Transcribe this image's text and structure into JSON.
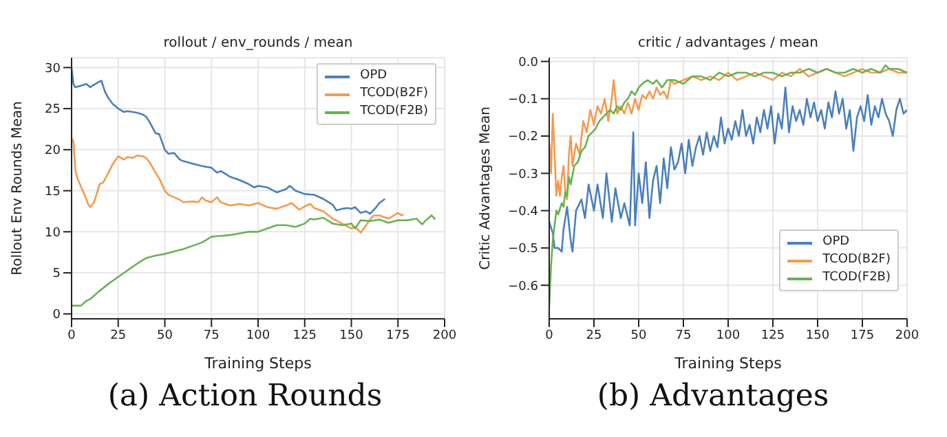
{
  "chart_data": [
    {
      "type": "line",
      "title": "rollout / env_rounds / mean",
      "xlabel": "Training Steps",
      "ylabel": "Rollout Env Rounds Mean",
      "annotations": [
        "(a) Action Rounds"
      ],
      "xlim": [
        0,
        200
      ],
      "xticks": [
        0,
        25,
        50,
        75,
        100,
        125,
        150,
        175,
        200
      ],
      "ylim": [
        -0.6,
        31.2
      ],
      "yticks": [
        0,
        5,
        10,
        15,
        20,
        25,
        30
      ],
      "grid": true,
      "legend": "top right",
      "series": [
        {
          "name": "OPD",
          "color": "#4a7fbc",
          "x": [
            0,
            1,
            2,
            5,
            8,
            10,
            12,
            15,
            16,
            18,
            20,
            22,
            25,
            28,
            30,
            35,
            38,
            40,
            42,
            45,
            47,
            50,
            52,
            55,
            58,
            60,
            65,
            70,
            75,
            78,
            80,
            85,
            90,
            95,
            98,
            100,
            105,
            110,
            115,
            117,
            120,
            125,
            130,
            135,
            140,
            142,
            145,
            148,
            150,
            152,
            155,
            158,
            160,
            163,
            165,
            168
          ],
          "values": [
            30,
            28,
            27.6,
            27.8,
            28,
            27.6,
            27.9,
            28.3,
            28.4,
            27,
            26.2,
            25.6,
            25,
            24.6,
            24.7,
            24.5,
            24.3,
            24,
            23.3,
            22,
            21.9,
            20,
            19.5,
            19.6,
            18.8,
            18.6,
            18.3,
            18,
            17.8,
            17.2,
            17.4,
            16.7,
            16.3,
            15.8,
            15.4,
            15.6,
            15.4,
            14.8,
            15.2,
            15.6,
            15,
            14.6,
            14.5,
            14,
            13.3,
            12.6,
            12.8,
            12.9,
            12.8,
            13,
            12.3,
            12.5,
            12.2,
            12.9,
            13.5,
            14
          ]
        },
        {
          "name": "TCOD(B2F)",
          "color": "#f39a4e",
          "x": [
            0,
            1,
            2,
            3,
            5,
            7,
            9,
            10,
            12,
            14,
            15,
            17,
            20,
            22,
            25,
            28,
            30,
            33,
            35,
            38,
            40,
            42,
            45,
            47,
            50,
            52,
            55,
            58,
            60,
            65,
            68,
            70,
            72,
            75,
            78,
            80,
            85,
            90,
            95,
            100,
            105,
            110,
            115,
            118,
            120,
            122,
            125,
            128,
            130,
            135,
            140,
            145,
            150,
            152,
            155,
            157,
            160,
            162,
            165,
            170,
            175,
            177,
            178
          ],
          "values": [
            21.4,
            21,
            17.5,
            16.6,
            15.5,
            14.5,
            13.3,
            13,
            13.6,
            15,
            15.8,
            16,
            17.3,
            18.2,
            19.2,
            18.8,
            19.1,
            19,
            19.3,
            19.2,
            19,
            18.4,
            17.2,
            16.5,
            15,
            14.5,
            14.2,
            13.9,
            13.6,
            13.7,
            13.6,
            14.2,
            13.8,
            13.6,
            14.2,
            13.6,
            13.2,
            13.4,
            13.2,
            13.5,
            13,
            12.8,
            13.2,
            13.5,
            13.1,
            12.7,
            13.1,
            13.4,
            12.9,
            12.5,
            11.6,
            11,
            10.4,
            10.6,
            9.9,
            10.5,
            11.5,
            12,
            12,
            11.6,
            12.3,
            12,
            12.1
          ]
        },
        {
          "name": "TCOD(F2B)",
          "color": "#6bb052",
          "x": [
            0,
            5,
            8,
            10,
            15,
            20,
            25,
            30,
            35,
            40,
            45,
            50,
            55,
            60,
            65,
            70,
            75,
            80,
            85,
            90,
            95,
            100,
            105,
            110,
            115,
            120,
            125,
            128,
            130,
            135,
            140,
            145,
            150,
            152,
            155,
            160,
            165,
            170,
            175,
            180,
            185,
            188,
            190,
            193,
            195
          ],
          "values": [
            1,
            1,
            1.6,
            1.8,
            2.8,
            3.7,
            4.5,
            5.3,
            6.1,
            6.8,
            7.1,
            7.3,
            7.6,
            7.9,
            8.3,
            8.7,
            9.4,
            9.5,
            9.6,
            9.8,
            10,
            10,
            10.4,
            10.8,
            10.8,
            10.6,
            11,
            11.6,
            11.5,
            11.7,
            11,
            10.8,
            11,
            10.4,
            11.4,
            11.3,
            11.5,
            11.1,
            11.4,
            11.4,
            11.6,
            10.9,
            11.4,
            12,
            11.5
          ]
        }
      ]
    },
    {
      "type": "line",
      "title": "critic / advantages / mean",
      "xlabel": "Training Steps",
      "ylabel": "Critic Advantages Mean",
      "annotations": [
        "(b) Advantages"
      ],
      "xlim": [
        0,
        200
      ],
      "xticks": [
        0,
        25,
        50,
        75,
        100,
        125,
        150,
        175,
        200
      ],
      "ylim": [
        -0.69,
        0.01
      ],
      "yticks": [
        {
          "value": -0.6,
          "label": "−0.6"
        },
        {
          "value": -0.5,
          "label": "−0.5"
        },
        {
          "value": -0.4,
          "label": "−0.4"
        },
        {
          "value": -0.3,
          "label": "−0.3"
        },
        {
          "value": -0.2,
          "label": "−0.2"
        },
        {
          "value": -0.1,
          "label": "−0.1"
        },
        {
          "value": 0,
          "label": "0.0"
        }
      ],
      "grid": true,
      "legend": "bottom right",
      "series": [
        {
          "name": "OPD",
          "color": "#4a7fbc",
          "x": [
            0,
            2,
            3,
            5,
            7,
            8,
            10,
            12,
            13,
            15,
            18,
            20,
            22,
            25,
            27,
            30,
            32,
            35,
            37,
            40,
            42,
            45,
            47,
            48,
            50,
            52,
            54,
            56,
            58,
            60,
            62,
            64,
            66,
            68,
            70,
            72,
            74,
            76,
            78,
            80,
            82,
            84,
            86,
            88,
            90,
            92,
            94,
            96,
            98,
            100,
            102,
            104,
            106,
            108,
            110,
            112,
            114,
            116,
            118,
            120,
            122,
            124,
            126,
            128,
            130,
            132,
            134,
            136,
            138,
            140,
            142,
            144,
            146,
            148,
            150,
            152,
            154,
            156,
            158,
            160,
            162,
            164,
            166,
            168,
            170,
            172,
            174,
            176,
            178,
            180,
            182,
            184,
            186,
            188,
            190,
            192,
            194,
            196,
            198,
            200
          ],
          "values": [
            -0.43,
            -0.46,
            -0.5,
            -0.5,
            -0.51,
            -0.45,
            -0.39,
            -0.48,
            -0.51,
            -0.4,
            -0.37,
            -0.42,
            -0.33,
            -0.4,
            -0.33,
            -0.42,
            -0.3,
            -0.43,
            -0.34,
            -0.42,
            -0.38,
            -0.44,
            -0.19,
            -0.44,
            -0.3,
            -0.38,
            -0.27,
            -0.42,
            -0.32,
            -0.28,
            -0.38,
            -0.26,
            -0.34,
            -0.23,
            -0.29,
            -0.27,
            -0.22,
            -0.3,
            -0.21,
            -0.28,
            -0.23,
            -0.2,
            -0.25,
            -0.19,
            -0.24,
            -0.2,
            -0.23,
            -0.15,
            -0.22,
            -0.18,
            -0.21,
            -0.16,
            -0.2,
            -0.13,
            -0.2,
            -0.17,
            -0.22,
            -0.15,
            -0.19,
            -0.13,
            -0.18,
            -0.12,
            -0.22,
            -0.14,
            -0.18,
            -0.07,
            -0.19,
            -0.12,
            -0.16,
            -0.13,
            -0.17,
            -0.1,
            -0.15,
            -0.11,
            -0.16,
            -0.13,
            -0.18,
            -0.11,
            -0.15,
            -0.08,
            -0.14,
            -0.1,
            -0.18,
            -0.13,
            -0.24,
            -0.15,
            -0.12,
            -0.16,
            -0.09,
            -0.17,
            -0.12,
            -0.15,
            -0.1,
            -0.14,
            -0.16,
            -0.2,
            -0.13,
            -0.1,
            -0.14,
            -0.13
          ]
        },
        {
          "name": "TCOD(B2F)",
          "color": "#f39a4e",
          "x": [
            0,
            1,
            2,
            3,
            4,
            5,
            6,
            7,
            8,
            9,
            10,
            11,
            12,
            13,
            15,
            17,
            19,
            21,
            23,
            25,
            27,
            29,
            31,
            33,
            35,
            36,
            38,
            40,
            42,
            44,
            46,
            48,
            50,
            52,
            54,
            56,
            58,
            60,
            62,
            64,
            66,
            68,
            70,
            75,
            80,
            85,
            90,
            95,
            100,
            105,
            110,
            115,
            120,
            125,
            130,
            135,
            140,
            145,
            150,
            155,
            160,
            165,
            170,
            175,
            180,
            185,
            190,
            195,
            200
          ],
          "values": [
            -0.22,
            -0.3,
            -0.14,
            -0.25,
            -0.36,
            -0.32,
            -0.36,
            -0.31,
            -0.28,
            -0.35,
            -0.37,
            -0.25,
            -0.2,
            -0.28,
            -0.22,
            -0.25,
            -0.16,
            -0.19,
            -0.13,
            -0.17,
            -0.12,
            -0.14,
            -0.1,
            -0.16,
            -0.1,
            -0.05,
            -0.14,
            -0.12,
            -0.14,
            -0.11,
            -0.14,
            -0.1,
            -0.13,
            -0.09,
            -0.1,
            -0.08,
            -0.1,
            -0.07,
            -0.09,
            -0.08,
            -0.1,
            -0.05,
            -0.06,
            -0.05,
            -0.04,
            -0.05,
            -0.04,
            -0.05,
            -0.03,
            -0.05,
            -0.04,
            -0.03,
            -0.04,
            -0.05,
            -0.03,
            -0.04,
            -0.02,
            -0.04,
            -0.03,
            -0.02,
            -0.03,
            -0.04,
            -0.03,
            -0.02,
            -0.03,
            -0.03,
            -0.02,
            -0.03,
            -0.03
          ]
        },
        {
          "name": "TCOD(F2B)",
          "color": "#6bb052",
          "x": [
            0,
            1,
            2,
            3,
            4,
            5,
            7,
            8,
            9,
            10,
            11,
            12,
            14,
            16,
            18,
            20,
            22,
            24,
            26,
            28,
            30,
            32,
            34,
            36,
            38,
            40,
            42,
            44,
            46,
            48,
            50,
            52,
            55,
            58,
            60,
            63,
            66,
            70,
            75,
            80,
            85,
            90,
            95,
            100,
            105,
            110,
            115,
            120,
            125,
            130,
            135,
            140,
            145,
            150,
            155,
            160,
            165,
            170,
            175,
            180,
            185,
            188,
            190,
            195,
            200
          ],
          "values": [
            -0.66,
            -0.55,
            -0.48,
            -0.44,
            -0.4,
            -0.41,
            -0.38,
            -0.39,
            -0.35,
            -0.36,
            -0.31,
            -0.33,
            -0.28,
            -0.27,
            -0.24,
            -0.23,
            -0.2,
            -0.19,
            -0.18,
            -0.16,
            -0.15,
            -0.14,
            -0.13,
            -0.14,
            -0.12,
            -0.13,
            -0.11,
            -0.1,
            -0.08,
            -0.09,
            -0.07,
            -0.06,
            -0.05,
            -0.06,
            -0.05,
            -0.07,
            -0.05,
            -0.05,
            -0.06,
            -0.04,
            -0.04,
            -0.05,
            -0.03,
            -0.04,
            -0.03,
            -0.03,
            -0.04,
            -0.03,
            -0.03,
            -0.04,
            -0.03,
            -0.03,
            -0.02,
            -0.03,
            -0.02,
            -0.03,
            -0.03,
            -0.02,
            -0.03,
            -0.02,
            -0.03,
            -0.01,
            -0.02,
            -0.02,
            -0.03
          ]
        }
      ]
    }
  ]
}
